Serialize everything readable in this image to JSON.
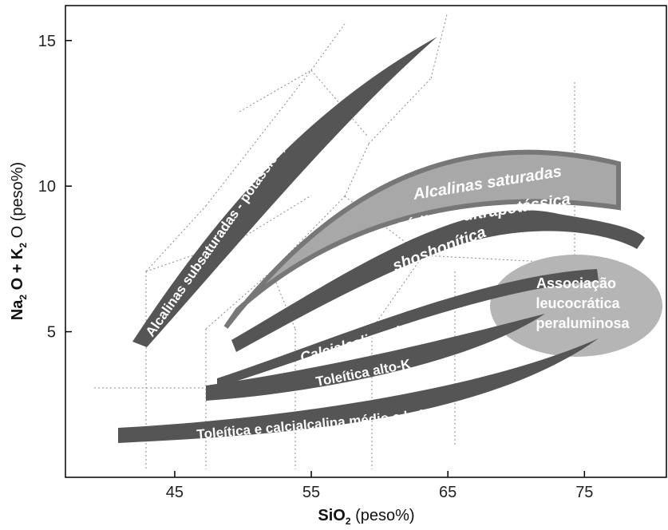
{
  "chart_data": {
    "type": "diagram",
    "xlabel_main": "SiO",
    "xlabel_sub": "2",
    "xlabel_unit": " (peso%)",
    "ylabel_parts": [
      "Na",
      "2",
      " O + K",
      "2",
      " O (peso%)"
    ],
    "x_ticks": [
      "45",
      "55",
      "65",
      "75"
    ],
    "y_ticks": [
      "5",
      "10",
      "15"
    ],
    "xlim": [
      37,
      81
    ],
    "ylim": [
      0,
      16.2
    ],
    "colors": {
      "band": "#555555",
      "fill_light": "#a8a8a8",
      "fill_outline": "#777777",
      "ellipse": "#b5b5b5",
      "grid": "#888888",
      "axes": "#000000"
    },
    "series": [
      {
        "name": "Alcalinas subsaturadas - potássica, sódica, ultrapotássica"
      },
      {
        "name": "Alcalinas saturadas"
      },
      {
        "name": "sódica  e  ultrapotássica"
      },
      {
        "name": "shoshonítica"
      },
      {
        "name": "Calcialcalina alto-K"
      },
      {
        "name": "Toleítica alto-K"
      },
      {
        "name": "Toleítica e calcialcalina médio e baixo-K"
      },
      {
        "name": "Associação"
      },
      {
        "name": "leucocrática"
      },
      {
        "name": "peraluminosa"
      }
    ]
  }
}
